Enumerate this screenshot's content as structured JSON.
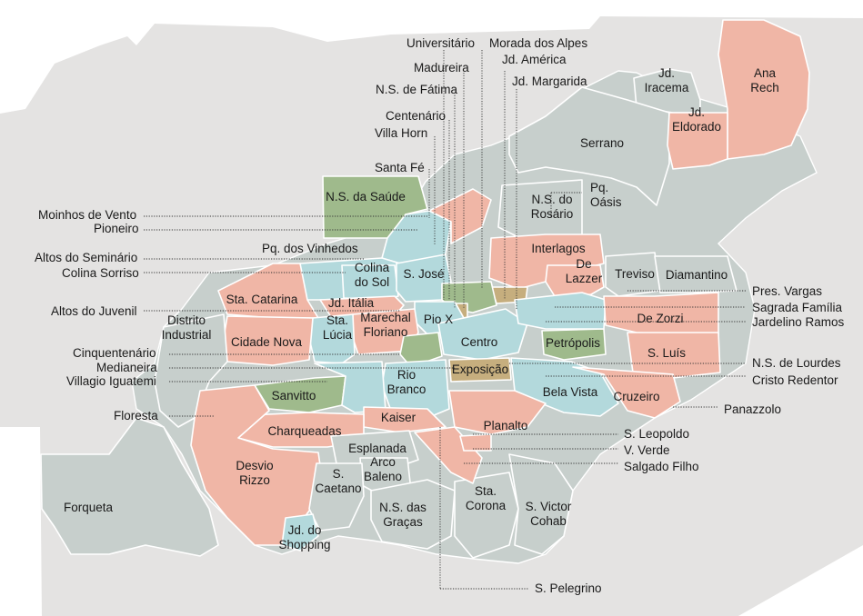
{
  "colors": {
    "background": "#e4e3e2",
    "land": "#c7cfcc",
    "salmon": "#f0b6a6",
    "green": "#9fba8c",
    "lightblue": "#b3d9dc",
    "tan": "#c6ae7e",
    "border": "#ffffff",
    "text": "#1a1a1a"
  },
  "legend_categories": [
    "salmon",
    "green",
    "lightblue",
    "tan",
    "gray"
  ],
  "neighborhoods": [
    {
      "id": "universitario",
      "label": "Universitário"
    },
    {
      "id": "morada-dos-alpes",
      "label": "Morada dos Alpes"
    },
    {
      "id": "madureira",
      "label": "Madureira"
    },
    {
      "id": "jd-america",
      "label": "Jd. América"
    },
    {
      "id": "jd-margarida",
      "label": "Jd. Margarida"
    },
    {
      "id": "ns-de-fatima",
      "label": "N.S. de Fátima"
    },
    {
      "id": "centenario",
      "label": "Centenário"
    },
    {
      "id": "villa-horn",
      "label": "Villa Horn"
    },
    {
      "id": "santa-fe",
      "label": "Santa Fé"
    },
    {
      "id": "jd-iracema",
      "label": "Jd. Iracema",
      "lines": [
        "Jd.",
        "Iracema"
      ]
    },
    {
      "id": "ana-rech",
      "label": "Ana Rech",
      "lines": [
        "Ana",
        "Rech"
      ]
    },
    {
      "id": "jd-eldorado",
      "label": "Jd. Eldorado",
      "lines": [
        "Jd.",
        "Eldorado"
      ]
    },
    {
      "id": "serrano",
      "label": "Serrano"
    },
    {
      "id": "ns-da-saude",
      "label": "N.S. da Saúde"
    },
    {
      "id": "pq-oasis",
      "label": "Pq. Oásis",
      "lines": [
        "Pq.",
        "Oásis"
      ]
    },
    {
      "id": "ns-do-rosario",
      "label": "N.S. do Rosário",
      "lines": [
        "N.S. do",
        "Rosário"
      ]
    },
    {
      "id": "moinhos-de-vento",
      "label": "Moinhos de Vento"
    },
    {
      "id": "pioneiro",
      "label": "Pioneiro"
    },
    {
      "id": "pq-dos-vinhedos",
      "label": "Pq. dos Vinhedos"
    },
    {
      "id": "interlagos",
      "label": "Interlagos"
    },
    {
      "id": "altos-do-seminario",
      "label": "Altos do Seminário"
    },
    {
      "id": "colina-sorriso",
      "label": "Colina Sorriso"
    },
    {
      "id": "colina-do-sol",
      "label": "Colina do Sol",
      "lines": [
        "Colina",
        "do Sol"
      ]
    },
    {
      "id": "s-jose",
      "label": "S. José"
    },
    {
      "id": "de-lazzer",
      "label": "De Lazzer",
      "lines": [
        "De",
        "Lazzer"
      ]
    },
    {
      "id": "treviso",
      "label": "Treviso"
    },
    {
      "id": "diamantino",
      "label": "Diamantino"
    },
    {
      "id": "pres-vargas",
      "label": "Pres. Vargas"
    },
    {
      "id": "sta-catarina",
      "label": "Sta. Catarina"
    },
    {
      "id": "jd-italia",
      "label": "Jd. Itália"
    },
    {
      "id": "sagrada-familia",
      "label": "Sagrada Família"
    },
    {
      "id": "altos-do-juvenil",
      "label": "Altos do Juvenil"
    },
    {
      "id": "pio-x",
      "label": "Pio X"
    },
    {
      "id": "de-zorzi",
      "label": "De Zorzi"
    },
    {
      "id": "jardelino-ramos",
      "label": "Jardelino Ramos"
    },
    {
      "id": "distrito-industrial",
      "label": "Distrito Industrial",
      "lines": [
        "Distrito",
        "Industrial"
      ]
    },
    {
      "id": "marechal-floriano",
      "label": "Marechal Floriano",
      "lines": [
        "Marechal",
        "Floriano"
      ]
    },
    {
      "id": "sta-lucia",
      "label": "Sta. Lúcia",
      "lines": [
        "Sta.",
        "Lúcia"
      ]
    },
    {
      "id": "cidade-nova",
      "label": "Cidade Nova"
    },
    {
      "id": "centro",
      "label": "Centro"
    },
    {
      "id": "petropolis",
      "label": "Petrópolis"
    },
    {
      "id": "cinquentenario",
      "label": "Cinquentenário"
    },
    {
      "id": "s-luis",
      "label": "S. Luís"
    },
    {
      "id": "medianeira",
      "label": "Medianeira"
    },
    {
      "id": "exposicao",
      "label": "Exposição"
    },
    {
      "id": "ns-de-lourdes",
      "label": "N.S. de Lourdes"
    },
    {
      "id": "villagio-iguatemi",
      "label": "Villagio Iguatemi"
    },
    {
      "id": "rio-branco",
      "label": "Rio Branco",
      "lines": [
        "Rio",
        "Branco"
      ]
    },
    {
      "id": "cristo-redentor",
      "label": "Cristo Redentor"
    },
    {
      "id": "sanvitto",
      "label": "Sanvitto"
    },
    {
      "id": "bela-vista",
      "label": "Bela Vista"
    },
    {
      "id": "cruzeiro",
      "label": "Cruzeiro"
    },
    {
      "id": "panazzolo",
      "label": "Panazzolo"
    },
    {
      "id": "floresta",
      "label": "Floresta"
    },
    {
      "id": "kaiser",
      "label": "Kaiser"
    },
    {
      "id": "planalto",
      "label": "Planalto"
    },
    {
      "id": "charqueadas",
      "label": "Charqueadas"
    },
    {
      "id": "s-leopoldo",
      "label": "S. Leopoldo"
    },
    {
      "id": "esplanada",
      "label": "Esplanada"
    },
    {
      "id": "v-verde",
      "label": "V. Verde"
    },
    {
      "id": "salgado-filho",
      "label": "Salgado Filho"
    },
    {
      "id": "desvio-rizzo",
      "label": "Desvio Rizzo",
      "lines": [
        "Desvio",
        "Rizzo"
      ]
    },
    {
      "id": "arco-baleno",
      "label": "Arco Baleno",
      "lines": [
        "Arco",
        "Baleno"
      ]
    },
    {
      "id": "s-caetano",
      "label": "S. Caetano",
      "lines": [
        "S.",
        "Caetano"
      ]
    },
    {
      "id": "forqueta",
      "label": "Forqueta"
    },
    {
      "id": "sta-corona",
      "label": "Sta. Corona",
      "lines": [
        "Sta.",
        "Corona"
      ]
    },
    {
      "id": "s-victor-cohab",
      "label": "S. Victor Cohab",
      "lines": [
        "S. Victor",
        "Cohab"
      ]
    },
    {
      "id": "ns-das-gracas",
      "label": "N.S. das Graças",
      "lines": [
        "N.S. das",
        "Graças"
      ]
    },
    {
      "id": "jd-do-shopping",
      "label": "Jd. do Shopping",
      "lines": [
        "Jd. do",
        "Shopping"
      ]
    },
    {
      "id": "s-pelegrino",
      "label": "S. Pelegrino"
    }
  ]
}
